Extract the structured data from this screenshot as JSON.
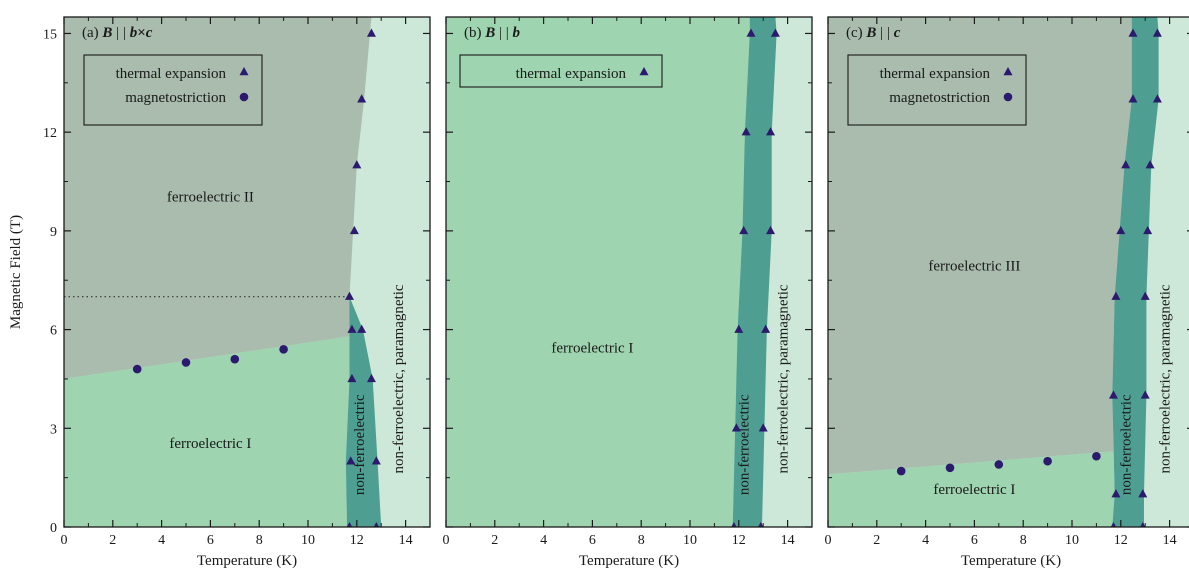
{
  "figure": {
    "ylabel": "Magnetic Field (T)",
    "colors": {
      "marker": "#2b1a6e",
      "ferroelectric_I": "#9ed4b0",
      "ferroelectric_other": "#a9bcae",
      "non_ferroelectric": "#4e9f92",
      "paramagnetic": "#cde8d8",
      "frame": "#1a1a1a"
    }
  },
  "chart_data": [
    {
      "type": "scatter",
      "panel": "a",
      "title": "(a) B || b×c",
      "title_parts": [
        "(a)",
        "B",
        " | | ",
        "b",
        "×",
        "c"
      ],
      "xlabel": "Temperature (K)",
      "ylabel": "Magnetic Field (T)",
      "xlim": [
        0,
        15
      ],
      "ylim": [
        0,
        15.5
      ],
      "xticks": [
        0,
        2,
        4,
        6,
        8,
        10,
        12,
        14
      ],
      "yticks": [
        0,
        3,
        6,
        9,
        12,
        15
      ],
      "legend": [
        "thermal expansion",
        "magnetostriction"
      ],
      "legend_position": "top-left",
      "series": [
        {
          "name": "thermal expansion",
          "marker": "triangle",
          "points": [
            [
              11.7,
              0
            ],
            [
              12.8,
              0
            ],
            [
              11.75,
              2
            ],
            [
              12.8,
              2
            ],
            [
              11.8,
              4.5
            ],
            [
              12.6,
              4.5
            ],
            [
              11.8,
              6
            ],
            [
              12.2,
              6
            ],
            [
              11.7,
              7
            ],
            [
              11.9,
              9
            ],
            [
              12.0,
              11
            ],
            [
              12.2,
              13
            ],
            [
              12.6,
              15
            ]
          ]
        },
        {
          "name": "magnetostriction",
          "marker": "circle",
          "points": [
            [
              3,
              4.8
            ],
            [
              5,
              5.0
            ],
            [
              7,
              5.1
            ],
            [
              9,
              5.4
            ]
          ]
        }
      ],
      "regions": [
        {
          "name": "ferroelectric II",
          "label": "ferroelectric II",
          "label_at": [
            6,
            9.9
          ]
        },
        {
          "name": "ferroelectric I",
          "label": "ferroelectric I",
          "label_at": [
            6,
            2.4
          ]
        },
        {
          "name": "non-ferroelectric",
          "label": "non-ferroelectric",
          "label_at": [
            12.3,
            2.5
          ],
          "rotated": true
        },
        {
          "name": "paramagnetic",
          "label": "non-ferroelectric, paramagnetic",
          "label_at": [
            13.9,
            4.5
          ],
          "rotated": true
        }
      ],
      "dotted_line": {
        "y": 7,
        "x": [
          0,
          11.7
        ]
      }
    },
    {
      "type": "scatter",
      "panel": "b",
      "title": "(b) B || b",
      "title_parts": [
        "(b)",
        "B",
        " | | ",
        "b"
      ],
      "xlabel": "Temperature (K)",
      "xlim": [
        0,
        15
      ],
      "ylim": [
        0,
        15.5
      ],
      "xticks": [
        0,
        2,
        4,
        6,
        8,
        10,
        12,
        14
      ],
      "yticks": [
        0,
        3,
        6,
        9,
        12,
        15
      ],
      "legend": [
        "thermal expansion"
      ],
      "legend_position": "top-left",
      "series": [
        {
          "name": "thermal expansion",
          "marker": "triangle",
          "points": [
            [
              11.8,
              0
            ],
            [
              12.9,
              0
            ],
            [
              11.9,
              3
            ],
            [
              13.0,
              3
            ],
            [
              12.0,
              6
            ],
            [
              13.1,
              6
            ],
            [
              12.2,
              9
            ],
            [
              13.3,
              9
            ],
            [
              12.3,
              12
            ],
            [
              13.3,
              12
            ],
            [
              12.5,
              15
            ],
            [
              13.5,
              15
            ]
          ]
        }
      ],
      "regions": [
        {
          "name": "ferroelectric I",
          "label": "ferroelectric I",
          "label_at": [
            6,
            5.3
          ]
        },
        {
          "name": "non-ferroelectric",
          "label": "non-ferroelectric",
          "label_at": [
            12.4,
            2.5
          ],
          "rotated": true
        },
        {
          "name": "paramagnetic",
          "label": "non-ferroelectric, paramagnetic",
          "label_at": [
            14.0,
            4.5
          ],
          "rotated": true
        }
      ]
    },
    {
      "type": "scatter",
      "panel": "c",
      "title": "(c) B || c",
      "title_parts": [
        "(c)",
        "B",
        " | | ",
        "c"
      ],
      "xlabel": "Temperature (K)",
      "xlim": [
        0,
        15
      ],
      "ylim": [
        0,
        15.5
      ],
      "xticks": [
        0,
        2,
        4,
        6,
        8,
        10,
        12,
        14
      ],
      "yticks": [
        0,
        3,
        6,
        9,
        12,
        15
      ],
      "legend": [
        "thermal expansion",
        "magnetostriction"
      ],
      "legend_position": "top-left",
      "series": [
        {
          "name": "thermal expansion",
          "marker": "triangle",
          "points": [
            [
              11.7,
              0
            ],
            [
              12.9,
              0
            ],
            [
              11.8,
              1
            ],
            [
              12.9,
              1
            ],
            [
              11.7,
              4
            ],
            [
              13.0,
              4
            ],
            [
              11.8,
              7
            ],
            [
              13.0,
              7
            ],
            [
              12.0,
              9
            ],
            [
              13.1,
              9
            ],
            [
              12.2,
              11
            ],
            [
              13.2,
              11
            ],
            [
              12.5,
              13
            ],
            [
              13.5,
              13
            ],
            [
              12.5,
              15
            ],
            [
              13.5,
              15
            ]
          ]
        },
        {
          "name": "magnetostriction",
          "marker": "circle",
          "points": [
            [
              3,
              1.7
            ],
            [
              5,
              1.8
            ],
            [
              7,
              1.9
            ],
            [
              9,
              2.0
            ],
            [
              11,
              2.15
            ]
          ]
        }
      ],
      "regions": [
        {
          "name": "ferroelectric III",
          "label": "ferroelectric III",
          "label_at": [
            6,
            7.8
          ]
        },
        {
          "name": "ferroelectric I",
          "label": "ferroelectric I",
          "label_at": [
            6,
            1.0
          ]
        },
        {
          "name": "non-ferroelectric",
          "label": "non-ferroelectric",
          "label_at": [
            12.4,
            2.5
          ],
          "rotated": true
        },
        {
          "name": "paramagnetic",
          "label": "non-ferroelectric, paramagnetic",
          "label_at": [
            14.0,
            4.5
          ],
          "rotated": true
        }
      ]
    }
  ]
}
